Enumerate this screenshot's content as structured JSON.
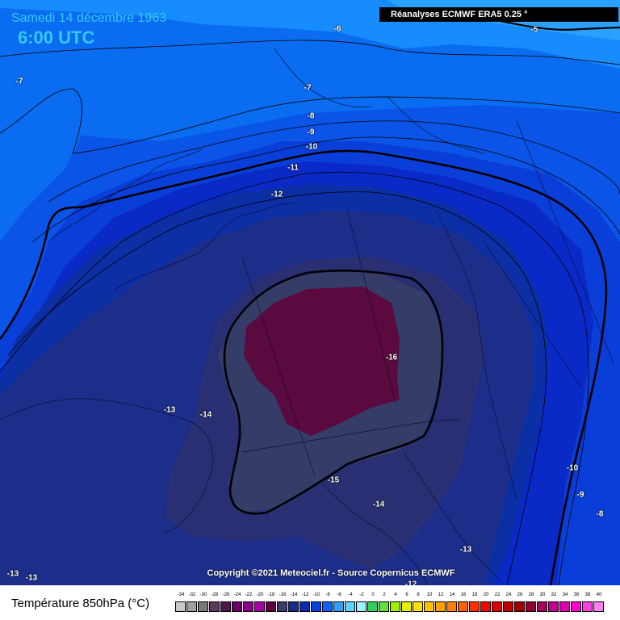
{
  "header": {
    "date": "Samedi 14 décembre 1963",
    "time": "6:00 UTC",
    "source": "Réanalyses ECMWF ERA5 0.25 °"
  },
  "contour_labels": [
    {
      "text": "-6",
      "t": "l1"
    },
    {
      "text": "-5",
      "t": "l2"
    },
    {
      "text": "-7",
      "t": "l3"
    },
    {
      "text": "-7",
      "t": "l4"
    },
    {
      "text": "-8",
      "t": "l5"
    },
    {
      "text": "-9",
      "t": "l6"
    },
    {
      "text": "-10",
      "t": "l7"
    },
    {
      "text": "-11",
      "t": "l8"
    },
    {
      "text": "-12",
      "t": "l9"
    },
    {
      "text": "-16",
      "t": "l10"
    },
    {
      "text": "-13",
      "t": "l11"
    },
    {
      "text": "-14",
      "t": "l12"
    },
    {
      "text": "-15",
      "t": "l13"
    },
    {
      "text": "-14",
      "t": "l14"
    },
    {
      "text": "-13",
      "t": "l15"
    },
    {
      "text": "-10",
      "t": "l16"
    },
    {
      "text": "-9",
      "t": "l17"
    },
    {
      "text": "-8",
      "t": "l18"
    },
    {
      "text": "-13",
      "t": "l19"
    },
    {
      "text": "-13",
      "t": "l20"
    },
    {
      "text": "-12",
      "t": "l21"
    }
  ],
  "copyright": "Copyright ©2021 Meteociel.fr - Source Copernicus ECMWF",
  "legend": {
    "title": "Température 850hPa (°C)",
    "ticks": [
      "-34",
      "-32",
      "-30",
      "-28",
      "-26",
      "-24",
      "-22",
      "-20",
      "-18",
      "-16",
      "-14",
      "-12",
      "-10",
      "-8",
      "-6",
      "-4",
      "-2",
      "0",
      "2",
      "4",
      "6",
      "8",
      "10",
      "12",
      "14",
      "16",
      "18",
      "20",
      "22",
      "24",
      "26",
      "28",
      "30",
      "32",
      "34",
      "36",
      "38",
      "40"
    ],
    "colors": [
      "#c8c8c8",
      "#a0a0a0",
      "#787878",
      "#5a3a5a",
      "#4a1a4a",
      "#6a006a",
      "#8a008a",
      "#aa00aa",
      "#600040",
      "#3a3a70",
      "#1a2a8a",
      "#0a2ab0",
      "#0040e0",
      "#1060ff",
      "#30a0ff",
      "#60d0ff",
      "#a0f0ff",
      "#30d060",
      "#60e040",
      "#a0f000",
      "#e0f000",
      "#ffe000",
      "#ffc000",
      "#ffa000",
      "#ff8000",
      "#ff6000",
      "#ff3000",
      "#ff0000",
      "#e00000",
      "#c00000",
      "#a00000",
      "#900030",
      "#a00060",
      "#c00090",
      "#e000b0",
      "#ff00d0",
      "#ff40e0",
      "#ff80f0"
    ]
  },
  "map_colors": {
    "minus5": "#2aa0ff",
    "minus6": "#168cff",
    "minus7": "#0a6cf0",
    "minus9": "#0a55e8",
    "minus10": "#0a3ed8",
    "minus11": "#0a2ac8",
    "minus12": "#0d2fa5",
    "minus13": "#1c2e8a",
    "minus14": "#2a2e72",
    "minus15": "#363c68",
    "minus16": "#5a0a3e"
  }
}
